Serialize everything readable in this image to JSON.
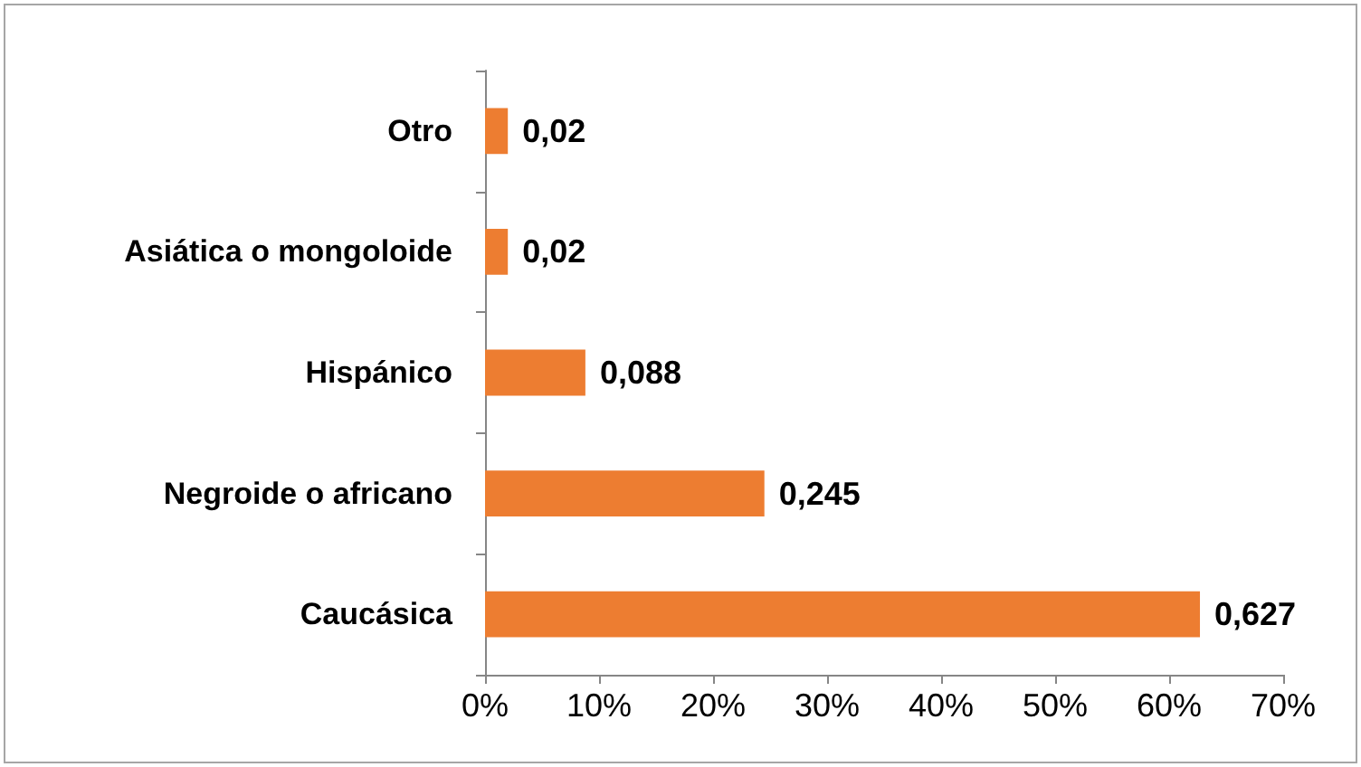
{
  "chart_data": {
    "type": "bar",
    "orientation": "horizontal",
    "categories": [
      "Otro",
      "Asiática o mongoloide",
      "Hispánico",
      "Negroide o africano",
      "Caucásica"
    ],
    "values": [
      0.02,
      0.02,
      0.088,
      0.245,
      0.627
    ],
    "value_labels": [
      "0,02",
      "0,02",
      "0,088",
      "0,245",
      "0,627"
    ],
    "color": "#ed7d31",
    "xlim": [
      0,
      0.7
    ],
    "xticks": [
      {
        "value": 0,
        "label": "0%"
      },
      {
        "value": 0.1,
        "label": "10%"
      },
      {
        "value": 0.2,
        "label": "20%"
      },
      {
        "value": 0.3,
        "label": "30%"
      },
      {
        "value": 0.4,
        "label": "40%"
      },
      {
        "value": 0.5,
        "label": "50%"
      },
      {
        "value": 0.6,
        "label": "60%"
      },
      {
        "value": 0.7,
        "label": "70%"
      }
    ],
    "grid": false
  }
}
